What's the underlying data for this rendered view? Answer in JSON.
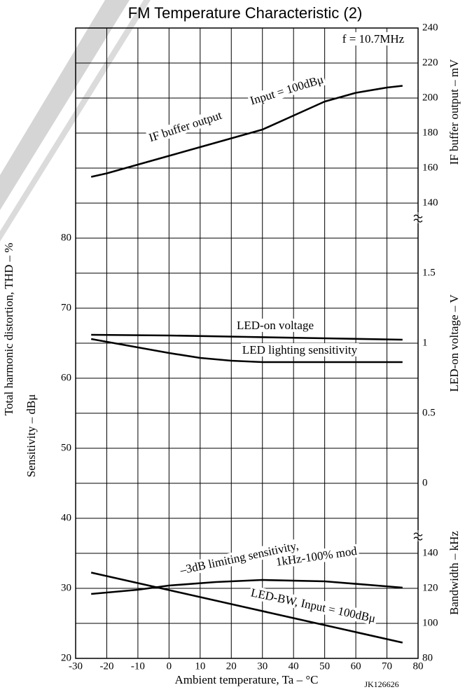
{
  "chart_data": {
    "type": "line",
    "title": "FM Temperature Characteristic (2)",
    "xlabel": "Ambient temperature, Ta – °C",
    "ylabel": [
      "Total harmonic distortion, THD – %",
      "Sensitivity – dBμ"
    ],
    "y2label": "IF buffer output – mV",
    "y3label": "LED-on voltage – V",
    "y4label": "Bandwidth – kHz",
    "figure_code": "JK126626",
    "xlim": [
      -30,
      80
    ],
    "xticks": [
      -30,
      -20,
      -10,
      0,
      10,
      20,
      30,
      40,
      50,
      60,
      70,
      80
    ],
    "ylim": [
      20,
      110
    ],
    "yticks": [
      20,
      30,
      40,
      50,
      60,
      70,
      80
    ],
    "y2lim": [
      140,
      240
    ],
    "y2ticks": [
      140,
      160,
      180,
      200,
      220,
      240
    ],
    "y3lim": [
      0,
      1.5
    ],
    "y3ticks": [
      0,
      0.5,
      1.0,
      1.5
    ],
    "y4lim": [
      80,
      140
    ],
    "y4ticks": [
      80,
      100,
      120,
      140
    ],
    "grid": true,
    "series": [
      {
        "name": "IF buffer output",
        "axis": "y2",
        "color": "#000000",
        "x": [
          -25,
          -20,
          -10,
          0,
          10,
          20,
          30,
          40,
          50,
          60,
          70,
          75
        ],
        "values": [
          155,
          157,
          162,
          167,
          172,
          177,
          182,
          190,
          198,
          203,
          206,
          207
        ]
      },
      {
        "name": "LED-on voltage",
        "axis": "y3",
        "color": "#000000",
        "x": [
          -25,
          0,
          25,
          50,
          75
        ],
        "values": [
          1.06,
          1.055,
          1.045,
          1.035,
          1.025
        ]
      },
      {
        "name": "LED lighting sensitivity",
        "axis": "y",
        "color": "#000000",
        "x": [
          -25,
          -10,
          0,
          10,
          20,
          30,
          50,
          75
        ],
        "values": [
          65.6,
          64.4,
          63.6,
          62.9,
          62.5,
          62.3,
          62.3,
          62.3
        ]
      },
      {
        "name": "–3dB limiting sensitivity,",
        "axis": "y",
        "color": "#000000",
        "x": [
          -25,
          -10,
          0,
          15,
          30,
          50,
          75
        ],
        "values": [
          29.2,
          29.8,
          30.4,
          30.9,
          31.2,
          31.0,
          30.1
        ]
      },
      {
        "name": "LED-BW, Input = 100dBμ",
        "axis": "y4",
        "color": "#000000",
        "x": [
          -25,
          0,
          25,
          50,
          75
        ],
        "values": [
          129,
          119,
          109,
          99,
          89
        ]
      }
    ],
    "annotations": [
      "Input = 100dBμ",
      "1kHz-100% mod",
      "f = 10.7MHz"
    ]
  }
}
